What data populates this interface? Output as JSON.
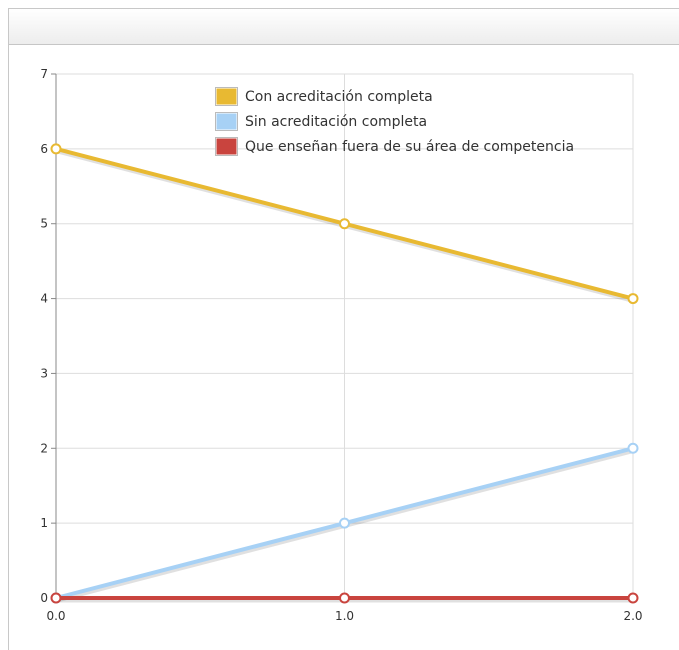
{
  "chart_data": {
    "type": "line",
    "x": [
      0.0,
      1.0,
      2.0
    ],
    "x_ticks": [
      "0.0",
      "1.0",
      "2.0"
    ],
    "y_ticks": [
      "0",
      "1",
      "2",
      "3",
      "4",
      "5",
      "6",
      "7"
    ],
    "xlim": [
      0,
      2
    ],
    "ylim": [
      0,
      7
    ],
    "grid": true,
    "legend_position": "top",
    "series": [
      {
        "name": "Con acreditación completa",
        "values": [
          6,
          5,
          4
        ],
        "color": "#e8b932"
      },
      {
        "name": "Sin acreditación completa",
        "values": [
          0,
          1,
          2
        ],
        "color": "#a7d1f5"
      },
      {
        "name": "Que enseñan fuera de su área de competencia",
        "values": [
          0,
          0,
          0
        ],
        "color": "#c9443e"
      }
    ]
  }
}
